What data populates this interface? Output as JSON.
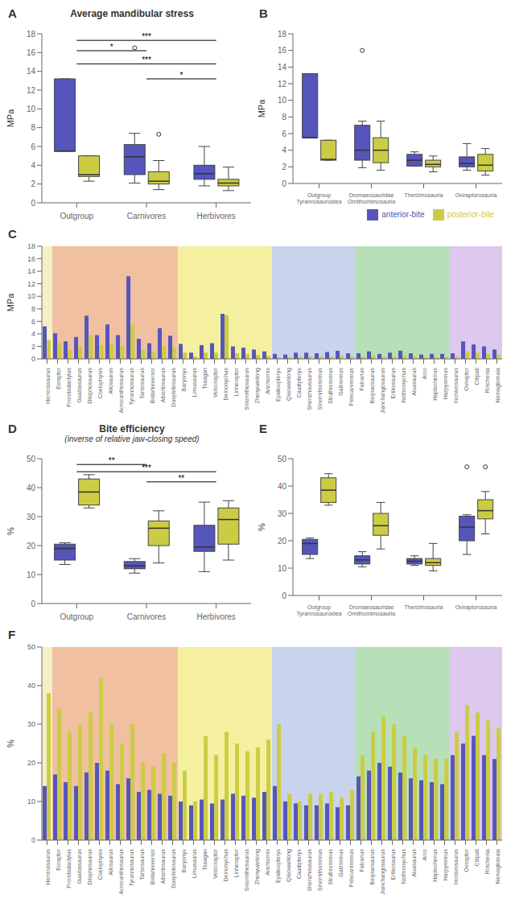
{
  "chart_data": [
    {
      "type": "box",
      "panel_label": "A",
      "title": "Average mandibular stress",
      "y_label": "MPa",
      "categories": [
        "Outgroup",
        "Carnivores",
        "Herbivores"
      ],
      "ylim": [
        0,
        18
      ],
      "yticks": [
        0,
        2,
        4,
        6,
        8,
        10,
        12,
        14,
        16,
        18
      ],
      "series": [
        {
          "color": "#5555bb",
          "boxes": [
            {
              "q1": 5.5,
              "median": 5.5,
              "q3": 13.2,
              "whislo": 5.5,
              "whishi": 13.2,
              "fliers": []
            },
            {
              "q1": 3.0,
              "median": 4.9,
              "q3": 6.2,
              "whislo": 2.1,
              "whishi": 7.4,
              "fliers": [
                16.5
              ]
            },
            {
              "q1": 2.5,
              "median": 3.1,
              "q3": 4.0,
              "whislo": 1.8,
              "whishi": 6.0,
              "fliers": []
            }
          ]
        },
        {
          "color": "#cccc44",
          "boxes": [
            {
              "q1": 2.8,
              "median": 3.0,
              "q3": 5.0,
              "whislo": 2.3,
              "whishi": 5.0,
              "fliers": []
            },
            {
              "q1": 2.0,
              "median": 2.3,
              "q3": 3.3,
              "whislo": 1.4,
              "whishi": 4.5,
              "fliers": [
                7.3
              ]
            },
            {
              "q1": 1.8,
              "median": 2.1,
              "q3": 2.5,
              "whislo": 1.3,
              "whishi": 3.8,
              "fliers": []
            }
          ]
        }
      ],
      "annotations": [
        {
          "text": "***",
          "from": "Outgroup",
          "to": "Herbivores",
          "y": 17.3
        },
        {
          "text": "*",
          "from": "Outgroup",
          "to": "Carnivores",
          "y": 16.2
        },
        {
          "text": "***",
          "from": "Outgroup",
          "to": "Herbivores",
          "y": 14.8
        },
        {
          "text": "*",
          "from": "Carnivores",
          "to": "Herbivores",
          "y": 13.2
        }
      ]
    },
    {
      "type": "box",
      "panel_label": "B",
      "y_label": "MPa",
      "categories": [
        "Outgroup\nTyrannosauroidea",
        "Dromaeosauridae\nOrnithomimosauria",
        "Therizinosauria",
        "Oviraptorosauria"
      ],
      "ylim": [
        0,
        18
      ],
      "yticks": [
        0,
        2,
        4,
        6,
        8,
        10,
        12,
        14,
        16,
        18
      ],
      "legend": "lower right",
      "series": [
        {
          "name": "anterior-bite",
          "color": "#5555bb",
          "boxes": [
            {
              "q1": 5.5,
              "median": 5.5,
              "q3": 13.2,
              "whislo": 5.5,
              "whishi": 13.2,
              "fliers": []
            },
            {
              "q1": 2.8,
              "median": 4.0,
              "q3": 7.0,
              "whislo": 1.9,
              "whishi": 7.5,
              "fliers": [
                16.0
              ]
            },
            {
              "q1": 2.1,
              "median": 2.8,
              "q3": 3.5,
              "whislo": 2.1,
              "whishi": 3.8,
              "fliers": []
            },
            {
              "q1": 2.0,
              "median": 2.4,
              "q3": 3.2,
              "whislo": 1.6,
              "whishi": 4.8,
              "fliers": []
            }
          ]
        },
        {
          "name": "posterior-bite",
          "color": "#cccc44",
          "boxes": [
            {
              "q1": 2.8,
              "median": 2.9,
              "q3": 5.2,
              "whislo": 2.8,
              "whishi": 5.2,
              "fliers": []
            },
            {
              "q1": 2.5,
              "median": 4.0,
              "q3": 5.5,
              "whislo": 1.6,
              "whishi": 7.5,
              "fliers": []
            },
            {
              "q1": 2.0,
              "median": 2.3,
              "q3": 2.8,
              "whislo": 1.4,
              "whishi": 3.3,
              "fliers": []
            },
            {
              "q1": 1.5,
              "median": 2.2,
              "q3": 3.5,
              "whislo": 1.0,
              "whishi": 4.2,
              "fliers": []
            }
          ]
        }
      ]
    },
    {
      "type": "bar",
      "panel_label": "C",
      "y_label": "MPa",
      "categories": [
        "Herrerasaurus",
        "Eoraptor",
        "Prorotodactylus",
        "Guaibasaurus",
        "Dilophosaurus",
        "Coelophysis",
        "Allosaurus",
        "Acrocanthosaurus",
        "Tyrannosaurus",
        "Tarbosaurus",
        "Bistahieversor",
        "Albertosaurus",
        "Daspletosaurus",
        "Baryonyx",
        "Limusaurus",
        "Tsaagan",
        "Velociraptor",
        "Deinonychus",
        "Linheraptor",
        "Sinornithosaurus",
        "Zhenyuanlong",
        "Anchiornis",
        "Epidexipteryx",
        "Qiaowanlong",
        "Caudipteryx",
        "Shenzhousaurus",
        "Sinornithomimus",
        "Struthiomimus",
        "Gallimimus",
        "Pelecanimimus",
        "Falcarius",
        "Beipiaosaurus",
        "Jianchangosaurus",
        "Erlikosaurus",
        "Nothronychus",
        "Alxasaurus",
        "Arco",
        "Haplocheirus",
        "Harpymimus",
        "Incisivosaurus",
        "Oviraptor",
        "Citipati",
        "Rinchenia",
        "Nemegtomaia"
      ],
      "ylim": [
        0,
        18
      ],
      "yticks": [
        0,
        2,
        4,
        6,
        8,
        10,
        12,
        14,
        16,
        18
      ],
      "series": [
        {
          "color": "#5555bb",
          "values": [
            5.2,
            4.1,
            2.8,
            3.5,
            6.9,
            3.8,
            5.5,
            3.8,
            13.2,
            3.2,
            2.5,
            4.9,
            3.7,
            2.4,
            1.0,
            2.2,
            2.5,
            7.2,
            2.0,
            1.8,
            1.5,
            1.2,
            0.8,
            0.7,
            1.0,
            1.0,
            0.9,
            1.1,
            1.3,
            0.9,
            0.9,
            1.2,
            0.8,
            1.0,
            1.3,
            0.9,
            0.7,
            0.8,
            0.8,
            0.9,
            2.8,
            2.3,
            2.0,
            1.5
          ]
        },
        {
          "color": "#cccc44",
          "values": [
            3.0,
            2.5,
            1.5,
            2.0,
            3.8,
            2.2,
            2.5,
            2.0,
            5.5,
            1.5,
            1.2,
            2.0,
            1.8,
            1.0,
            0.4,
            1.0,
            1.0,
            7.0,
            0.9,
            0.8,
            0.6,
            0.5,
            0.3,
            0.3,
            0.4,
            0.4,
            0.4,
            0.4,
            0.5,
            0.4,
            0.4,
            0.5,
            0.3,
            0.4,
            0.5,
            0.4,
            0.3,
            0.3,
            0.3,
            0.4,
            1.2,
            1.0,
            0.8,
            0.7
          ]
        }
      ],
      "regions": [
        {
          "start": "Herrerasaurus",
          "end": "Herrerasaurus",
          "color": "#f5f0c8"
        },
        {
          "start": "Eoraptor",
          "end": "Daspletosaurus",
          "color": "#f0c0a0"
        },
        {
          "start": "Baryonyx",
          "end": "Anchiornis",
          "color": "#f5f0a0"
        },
        {
          "start": "Epidexipteryx",
          "end": "Pelecanimimus",
          "color": "#c8d4ec"
        },
        {
          "start": "Falcarius",
          "end": "Harpymimus",
          "color": "#b8e0b8"
        },
        {
          "start": "Incisivosaurus",
          "end": "Nemegtomaia",
          "color": "#ddc8ee"
        }
      ]
    },
    {
      "type": "box",
      "panel_label": "D",
      "title": "Bite efficiency",
      "subtitle": "(inverse of relative jaw-closing speed)",
      "y_label": "%",
      "categories": [
        "Outgroup",
        "Carnivores",
        "Herbivores"
      ],
      "ylim": [
        0,
        50
      ],
      "yticks": [
        0,
        10,
        20,
        30,
        40,
        50
      ],
      "series": [
        {
          "color": "#5555bb",
          "boxes": [
            {
              "q1": 15.0,
              "median": 19.0,
              "q3": 20.5,
              "whislo": 13.5,
              "whishi": 21.0,
              "fliers": []
            },
            {
              "q1": 12.0,
              "median": 13.0,
              "q3": 14.5,
              "whislo": 10.5,
              "whishi": 15.5,
              "fliers": []
            },
            {
              "q1": 18.0,
              "median": 19.5,
              "q3": 27.0,
              "whislo": 11.0,
              "whishi": 35.0,
              "fliers": []
            }
          ]
        },
        {
          "color": "#cccc44",
          "boxes": [
            {
              "q1": 34.0,
              "median": 38.5,
              "q3": 43.0,
              "whislo": 33.0,
              "whishi": 44.5,
              "fliers": []
            },
            {
              "q1": 20.0,
              "median": 26.0,
              "q3": 28.5,
              "whislo": 14.0,
              "whishi": 32.0,
              "fliers": []
            },
            {
              "q1": 20.5,
              "median": 29.0,
              "q3": 33.0,
              "whislo": 15.0,
              "whishi": 35.5,
              "fliers": []
            }
          ]
        }
      ],
      "annotations": [
        {
          "text": "**",
          "from": "Outgroup",
          "to": "Carnivores",
          "y": 48
        },
        {
          "text": "***",
          "from": "Outgroup",
          "to": "Herbivores",
          "y": 45.5
        },
        {
          "text": "**",
          "from": "Carnivores",
          "to": "Herbivores",
          "y": 42
        }
      ]
    },
    {
      "type": "box",
      "panel_label": "E",
      "y_label": "%",
      "categories": [
        "Outgroup\nTyrannosauroidea",
        "Dromaeosauridae\nOrnithomimosauria",
        "Therizinosauria",
        "Oviraptorosauria"
      ],
      "ylim": [
        0,
        50
      ],
      "yticks": [
        0,
        10,
        20,
        30,
        40,
        50
      ],
      "series": [
        {
          "color": "#5555bb",
          "boxes": [
            {
              "q1": 15.0,
              "median": 19.0,
              "q3": 20.5,
              "whislo": 13.5,
              "whishi": 21.0,
              "fliers": []
            },
            {
              "q1": 11.5,
              "median": 13.0,
              "q3": 14.5,
              "whislo": 10.5,
              "whishi": 16.0,
              "fliers": []
            },
            {
              "q1": 11.5,
              "median": 12.5,
              "q3": 13.5,
              "whislo": 11.0,
              "whishi": 14.5,
              "fliers": []
            },
            {
              "q1": 20.0,
              "median": 25.0,
              "q3": 29.0,
              "whislo": 15.0,
              "whishi": 29.5,
              "fliers": [
                47.0
              ]
            }
          ]
        },
        {
          "color": "#cccc44",
          "boxes": [
            {
              "q1": 34.0,
              "median": 38.5,
              "q3": 43.0,
              "whislo": 33.0,
              "whishi": 44.5,
              "fliers": []
            },
            {
              "q1": 22.0,
              "median": 25.5,
              "q3": 30.0,
              "whislo": 17.0,
              "whishi": 34.0,
              "fliers": []
            },
            {
              "q1": 11.0,
              "median": 12.0,
              "q3": 13.5,
              "whislo": 9.0,
              "whishi": 19.0,
              "fliers": []
            },
            {
              "q1": 28.0,
              "median": 31.0,
              "q3": 35.0,
              "whislo": 22.5,
              "whishi": 38.0,
              "fliers": [
                47.0
              ]
            }
          ]
        }
      ]
    },
    {
      "type": "bar",
      "panel_label": "F",
      "y_label": "%",
      "categories": [
        "Herrerasaurus",
        "Eoraptor",
        "Prorotodactylus",
        "Guaibasaurus",
        "Dilophosaurus",
        "Coelophysis",
        "Allosaurus",
        "Acrocanthosaurus",
        "Tyrannosaurus",
        "Tarbosaurus",
        "Bistahieversor",
        "Albertosaurus",
        "Daspletosaurus",
        "Baryonyx",
        "Limusaurus",
        "Tsaagan",
        "Velociraptor",
        "Deinonychus",
        "Linheraptor",
        "Sinornithosaurus",
        "Zhenyuanlong",
        "Anchiornis",
        "Epidexipteryx",
        "Qiaowanlong",
        "Caudipteryx",
        "Shenzhousaurus",
        "Sinornithomimus",
        "Struthiomimus",
        "Gallimimus",
        "Pelecanimimus",
        "Falcarius",
        "Beipiaosaurus",
        "Jianchangosaurus",
        "Erlikosaurus",
        "Nothronychus",
        "Alxasaurus",
        "Arco",
        "Haplocheirus",
        "Harpymimus",
        "Incisivosaurus",
        "Oviraptor",
        "Citipati",
        "Rinchenia",
        "Nemegtomaia"
      ],
      "ylim": [
        0,
        50
      ],
      "yticks": [
        0,
        10,
        20,
        30,
        40,
        50
      ],
      "series": [
        {
          "color": "#5555bb",
          "values": [
            14.0,
            17.0,
            15.0,
            14.0,
            17.5,
            20.0,
            18.0,
            14.5,
            16.0,
            12.5,
            13.0,
            12.0,
            11.5,
            10.0,
            9.0,
            10.5,
            9.5,
            10.5,
            12.0,
            11.5,
            11.0,
            12.5,
            14.0,
            10.0,
            9.5,
            9.0,
            9.0,
            9.5,
            8.5,
            9.0,
            16.5,
            18.0,
            20.0,
            19.0,
            17.5,
            16.0,
            15.5,
            15.0,
            14.5,
            22.0,
            25.0,
            27.0,
            22.0,
            21.0
          ]
        },
        {
          "color": "#cccc44",
          "values": [
            38.0,
            34.0,
            28.0,
            30.0,
            33.0,
            42.0,
            30.0,
            25.0,
            30.0,
            20.0,
            19.0,
            22.5,
            20.0,
            18.0,
            10.0,
            27.0,
            22.0,
            28.0,
            25.0,
            23.0,
            24.0,
            26.0,
            30.0,
            12.0,
            10.0,
            12.0,
            12.0,
            12.5,
            11.0,
            13.0,
            22.0,
            28.0,
            32.0,
            30.0,
            27.0,
            24.0,
            22.0,
            21.0,
            21.0,
            28.0,
            35.0,
            33.0,
            31.0,
            29.0
          ]
        }
      ],
      "regions": [
        {
          "start": "Herrerasaurus",
          "end": "Herrerasaurus",
          "color": "#f5f0c8"
        },
        {
          "start": "Eoraptor",
          "end": "Daspletosaurus",
          "color": "#f0c0a0"
        },
        {
          "start": "Baryonyx",
          "end": "Anchiornis",
          "color": "#f5f0a0"
        },
        {
          "start": "Epidexipteryx",
          "end": "Pelecanimimus",
          "color": "#c8d4ec"
        },
        {
          "start": "Falcarius",
          "end": "Harpymimus",
          "color": "#b8e0b8"
        },
        {
          "start": "Incisivosaurus",
          "end": "Nemegtomaia",
          "color": "#ddc8ee"
        }
      ]
    }
  ]
}
